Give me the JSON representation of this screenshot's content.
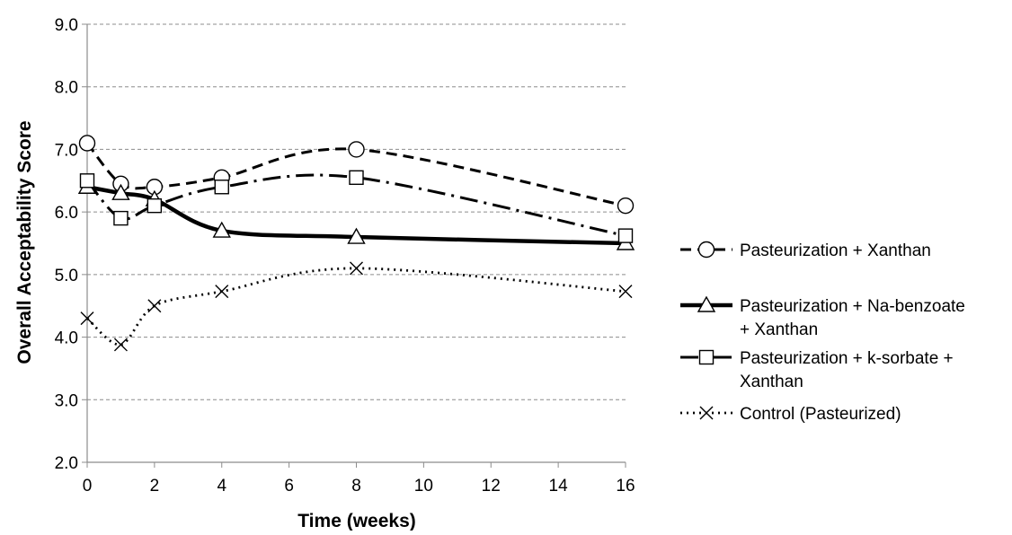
{
  "chart_data": {
    "type": "line",
    "title": "",
    "xlabel": "Time (weeks)",
    "ylabel": "Overall Acceptability Score",
    "xlim": [
      0,
      16
    ],
    "ylim": [
      2.0,
      9.0
    ],
    "x_ticks": [
      0,
      2,
      4,
      6,
      8,
      10,
      12,
      14,
      16
    ],
    "y_ticks": [
      2.0,
      3.0,
      4.0,
      5.0,
      6.0,
      7.0,
      8.0,
      9.0
    ],
    "y_tick_labels": [
      "2.0",
      "3.0",
      "4.0",
      "5.0",
      "6.0",
      "7.0",
      "8.0",
      "9.0"
    ],
    "grid": "horizontal dashed",
    "legend": "right",
    "series": [
      {
        "name": "Pasteurization + Xanthan",
        "legend_lines": [
          "Pasteurization + Xanthan"
        ],
        "marker": "circle",
        "dash": "dashed",
        "x": [
          0,
          1,
          2,
          4,
          8,
          16
        ],
        "y": [
          7.1,
          6.45,
          6.4,
          6.55,
          7.0,
          6.1
        ]
      },
      {
        "name": "Pasteurization + Na-benzoate + Xanthan",
        "legend_lines": [
          "Pasteurization + Na-benzoate",
          "+ Xanthan"
        ],
        "marker": "triangle",
        "dash": "solid",
        "x": [
          0,
          1,
          2,
          4,
          8,
          16
        ],
        "y": [
          6.4,
          6.3,
          6.2,
          5.7,
          5.6,
          5.5
        ]
      },
      {
        "name": "Pasteurization + k-sorbate + Xanthan",
        "legend_lines": [
          "Pasteurization + k-sorbate +",
          "Xanthan"
        ],
        "marker": "square",
        "dash": "dash-dot",
        "x": [
          0,
          1,
          2,
          4,
          8,
          16
        ],
        "y": [
          6.5,
          5.9,
          6.1,
          6.4,
          6.55,
          5.62
        ]
      },
      {
        "name": "Control (Pasteurized)",
        "legend_lines": [
          "Control (Pasteurized)"
        ],
        "marker": "x",
        "dash": "dotted",
        "x": [
          0,
          1,
          2,
          4,
          8,
          16
        ],
        "y": [
          4.3,
          3.88,
          4.5,
          4.73,
          5.1,
          4.73
        ]
      }
    ]
  }
}
